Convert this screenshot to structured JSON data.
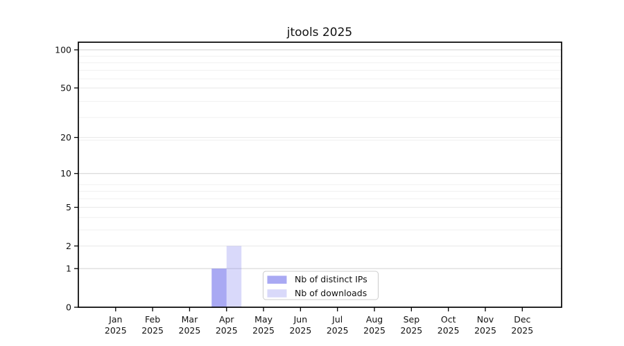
{
  "title": "jtools 2025",
  "colors": {
    "background": "#ffffff",
    "axis": "#000000",
    "bar_base": "#8888ee",
    "grid_major": "#d0d0d0",
    "grid_mid": "#e7e7e7",
    "grid_minor": "#f0f0f0",
    "legend_border": "#cccccc",
    "legend_bg": "#ffffff"
  },
  "legend": {
    "items": [
      {
        "label": "Nb of distinct IPs"
      },
      {
        "label": "Nb of downloads"
      }
    ]
  },
  "chart_data": {
    "type": "bar",
    "title": "jtools 2025",
    "x_months": [
      "Jan",
      "Feb",
      "Mar",
      "Apr",
      "May",
      "Jun",
      "Jul",
      "Aug",
      "Sep",
      "Oct",
      "Nov",
      "Dec"
    ],
    "x_year": "2025",
    "categories": [
      "Jan 2025",
      "Feb 2025",
      "Mar 2025",
      "Apr 2025",
      "May 2025",
      "Jun 2025",
      "Jul 2025",
      "Aug 2025",
      "Sep 2025",
      "Oct 2025",
      "Nov 2025",
      "Dec 2025"
    ],
    "y_ticks": [
      0,
      1,
      2,
      5,
      10,
      20,
      50,
      100
    ],
    "y_scale": "log1p",
    "ylim": [
      0,
      115
    ],
    "grid": true,
    "xlabel": "",
    "ylabel": "",
    "legend_position": "lower center",
    "series": [
      {
        "name": "Nb of distinct IPs",
        "color": "#8888ee",
        "opacity": 0.72,
        "values": [
          0,
          0,
          0,
          1,
          0,
          0,
          0,
          0,
          0,
          0,
          0,
          0
        ]
      },
      {
        "name": "Nb of downloads",
        "color": "#8888ee",
        "opacity": 0.32,
        "values": [
          0,
          0,
          0,
          2,
          0,
          0,
          0,
          0,
          0,
          0,
          0,
          0
        ]
      }
    ]
  }
}
